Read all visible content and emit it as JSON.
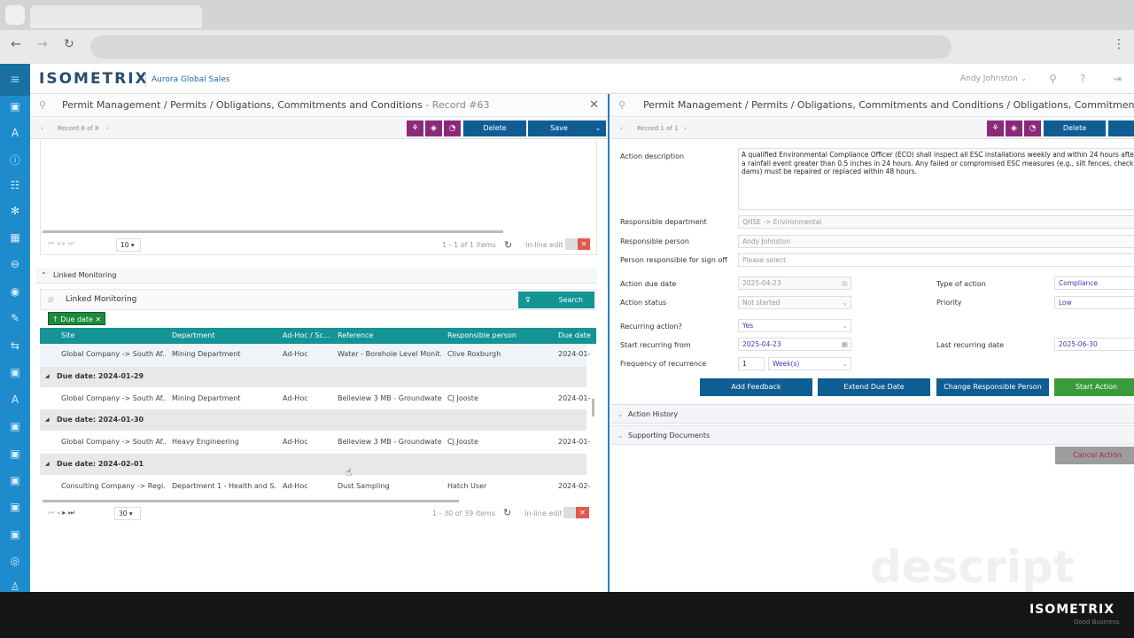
{
  "browser": {
    "back": "←",
    "forward": "→",
    "reload": "↻",
    "menu": "⋮"
  },
  "app": {
    "logo": "ISOMETRIX",
    "tenant": "Aurora Global Sales",
    "user": "Andy Johnston"
  },
  "left": {
    "breadcrumb": "Permit Management / Permits / Obligations, Commitments and Conditions",
    "record_suffix": "- Record #63",
    "record_nav": "Record 8 of 8",
    "delete": "Delete",
    "save": "Save",
    "grid1": {
      "page_size": "10",
      "summary": "1 - 1 of 1 items",
      "inline_edit": "In-line edit"
    },
    "section": "Linked Monitoring",
    "linked": {
      "title": "Linked Monitoring",
      "search": "Search",
      "sort_chip": "↑ Due date",
      "columns": [
        "Site",
        "Department",
        "Ad-Hoc / Sc...",
        "Reference",
        "Responsible person",
        "Due date"
      ],
      "rows": [
        {
          "type": "row",
          "cells": [
            "Global Company -> South Af...",
            "Mining Department",
            "Ad-Hoc",
            "Water - Borehole Level Monit...",
            "Clive Roxburgh",
            "2024-01-"
          ]
        },
        {
          "type": "group",
          "label": "Due date: 2024-01-29"
        },
        {
          "type": "row",
          "cells": [
            "Global Company -> South Af...",
            "Mining Department",
            "Ad-Hoc",
            "Belleview 3 MB - Groundwate...",
            "CJ Jooste",
            "2024-01-"
          ]
        },
        {
          "type": "group",
          "label": "Due date: 2024-01-30"
        },
        {
          "type": "row",
          "cells": [
            "Global Company -> South Af...",
            "Heavy Engineering",
            "Ad-Hoc",
            "Belleview 3 MB - Groundwate...",
            "CJ Jooste",
            "2024-01-"
          ]
        },
        {
          "type": "group",
          "label": "Due date: 2024-02-01"
        },
        {
          "type": "row",
          "cells": [
            "Consulting Company -> Regi...",
            "Department 1 - Health and S...",
            "Ad-Hoc",
            "Dust Sampling",
            "Hatch User",
            "2024-02-"
          ]
        }
      ],
      "page_size": "30",
      "summary": "1 - 30 of 39 items",
      "inline_edit": "In-line edit"
    }
  },
  "right": {
    "breadcrumb": "Permit Management / Permits / Obligations, Commitments and Conditions / Obligations, Commitments and Conditions A",
    "record_nav": "Record 1 of 1",
    "delete": "Delete",
    "action_description_label": "Action description",
    "action_description": "A qualified Environmental Compliance Officer (ECO) shall inspect all ESC installations weekly and within 24 hours after a rainfall event greater than 0.5 inches in 24 hours. Any failed or compromised ESC measures (e.g., silt fences, check dams) must be repaired or replaced within 48 hours.",
    "fields": {
      "resp_dept_label": "Responsible department",
      "resp_dept": "QHSE -> Environmental",
      "resp_person_label": "Responsible person",
      "resp_person": "Andy Johnston",
      "signoff_label": "Person responsible for sign off",
      "signoff_placeholder": "Please select",
      "due_label": "Action due date",
      "due": "2025-04-23",
      "status_label": "Action status",
      "status": "Not started",
      "type_label": "Type of action",
      "type": "Compliance",
      "priority_label": "Priority",
      "priority": "Low",
      "recurring_label": "Recurring action?",
      "recurring": "Yes",
      "start_label": "Start recurring from",
      "start": "2025-04-23",
      "last_label": "Last recurring date",
      "last": "2025-06-30",
      "freq_label": "Frequency of recurrence",
      "freq_num": "1",
      "freq_unit": "Week(s)"
    },
    "buttons": {
      "feedback": "Add Feedback",
      "extend": "Extend Due Date",
      "change": "Change Responsible Person",
      "start": "Start Action",
      "cancel": "Cancel Action"
    },
    "sections": {
      "history": "Action History",
      "docs": "Supporting Documents"
    }
  },
  "watermark": "descript",
  "footer": {
    "logo": "ISOMETRIX",
    "tagline": "Good Business"
  },
  "colors": {
    "sidebar": "#1e8ccc",
    "primary": "#0e5e94",
    "purple": "#8b2a7b",
    "teal": "#149494",
    "green": "#3a9b3a"
  }
}
